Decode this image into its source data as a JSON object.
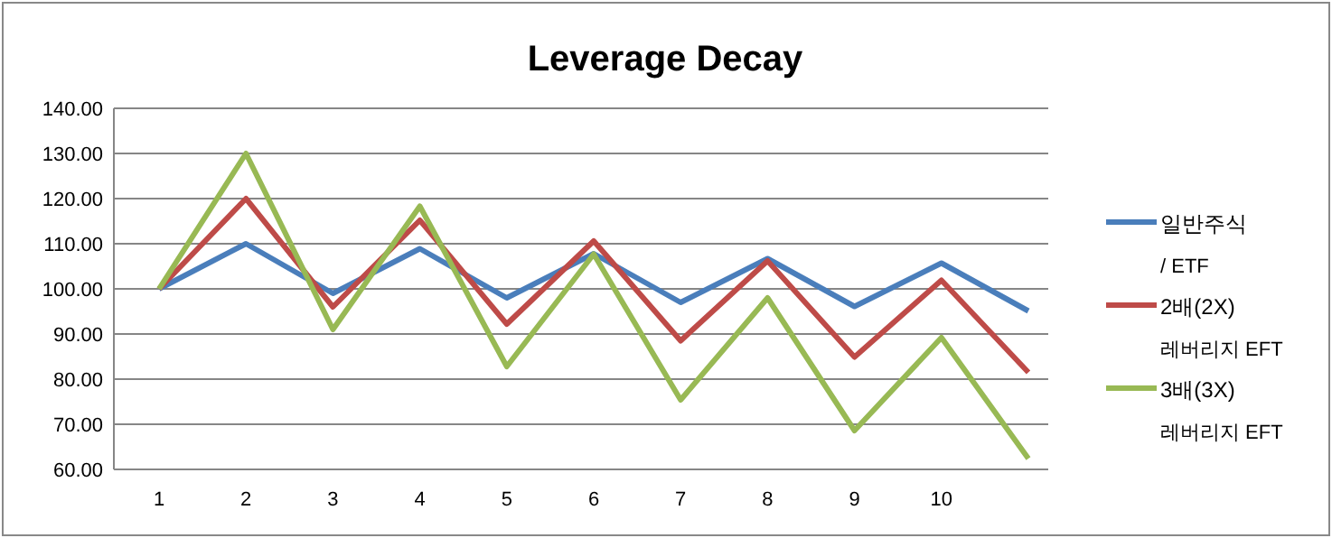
{
  "chart_data": {
    "type": "line",
    "title": "Leverage Decay",
    "categories": [
      "1",
      "2",
      "3",
      "4",
      "5",
      "6",
      "7",
      "8",
      "9",
      "10",
      null
    ],
    "series": [
      {
        "name": "일반주식 / ETF",
        "color": "#4a7ebb",
        "values": [
          100,
          110,
          99,
          108.9,
          98.0,
          107.8,
          97.0,
          106.7,
          96.1,
          105.7,
          95.1
        ]
      },
      {
        "name": "2배(2X) 레버리지 EFT",
        "color": "#be4b48",
        "values": [
          100,
          120,
          96,
          115.2,
          92.2,
          110.6,
          88.5,
          106.2,
          84.9,
          101.9,
          81.5
        ]
      },
      {
        "name": "3배(3X) 레버리지 EFT",
        "color": "#98b954",
        "values": [
          100,
          130,
          91,
          118.3,
          82.8,
          107.7,
          75.4,
          98.0,
          68.6,
          89.2,
          62.4
        ]
      }
    ],
    "ylim": [
      60,
      140
    ],
    "yticks": [
      {
        "value": 60,
        "label": "60.00"
      },
      {
        "value": 70,
        "label": "70.00"
      },
      {
        "value": 80,
        "label": "80.00"
      },
      {
        "value": 90,
        "label": "90.00"
      },
      {
        "value": 100,
        "label": "100.00"
      },
      {
        "value": 110,
        "label": "110.00"
      },
      {
        "value": 120,
        "label": "120.00"
      },
      {
        "value": 130,
        "label": "130.00"
      },
      {
        "value": 140,
        "label": "140.00"
      }
    ],
    "grid": "y",
    "legend": "right",
    "marker": "none",
    "line_style": "solid"
  }
}
